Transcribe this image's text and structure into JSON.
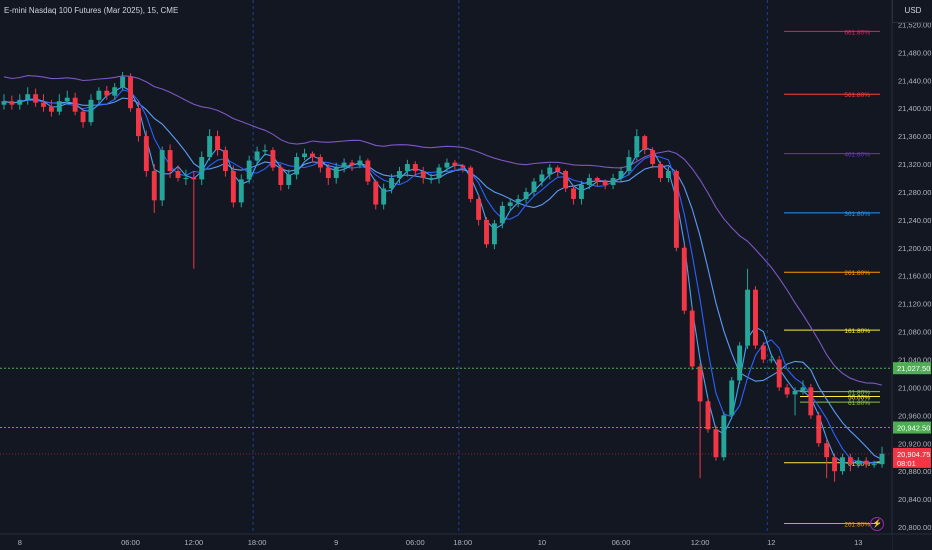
{
  "header": {
    "title": "E-mini Nasdaq 100 Futures (Mar 2025), 15, CME",
    "currency": "USD"
  },
  "icons": {
    "replay": "lightning-icon"
  },
  "chart_data": {
    "type": "candlestick",
    "title": "E-mini Nasdaq 100 Futures (Mar 2025), 15, CME",
    "x_labels": [
      "8",
      "06:00",
      "12:00",
      "18:00",
      "9",
      "06:00",
      "18:00",
      "10",
      "06:00",
      "12:00",
      "12",
      "13"
    ],
    "x_label_pos": [
      2,
      16,
      24,
      32,
      42,
      52,
      58,
      68,
      78,
      88,
      97,
      108
    ],
    "x_count": 112,
    "ylim": [
      20790,
      21555
    ],
    "y_ticks": [
      20800,
      20840,
      20880,
      20920,
      20960,
      21000,
      21040,
      21080,
      21120,
      21160,
      21200,
      21240,
      21280,
      21320,
      21360,
      21400,
      21440,
      21480,
      21520
    ],
    "anchor_levels": [
      {
        "value": 21027.5,
        "label": "21,027.50",
        "color": "#4caf50"
      },
      {
        "value": 20942.5,
        "label": "20,942.50",
        "color": "#4caf50"
      }
    ],
    "last_price": {
      "value": 20904.75,
      "label": "20,904.75",
      "countdown": "08:01",
      "color": "#f23645"
    },
    "session_breaks": [
      32,
      58,
      97
    ],
    "fib_levels": [
      {
        "value": 21510,
        "label": "661.80%",
        "color": "#e91e63"
      },
      {
        "value": 21420,
        "label": "561.80%",
        "color": "#f44336"
      },
      {
        "value": 21335,
        "label": "461.80%",
        "color": "#673ab7"
      },
      {
        "value": 21250,
        "label": "361.80%",
        "color": "#2196f3"
      },
      {
        "value": 21165,
        "label": "261.80%",
        "color": "#ff9800"
      },
      {
        "value": 21082,
        "label": "161.80%",
        "color": "#ffeb3b"
      },
      {
        "value": 20994,
        "label": "61.80%",
        "color": "#8bc34a"
      },
      {
        "value": 20987,
        "label": "50.00%",
        "color": "#ffeb3b"
      },
      {
        "value": 20979,
        "label": "61.80%",
        "color": "#8bc34a"
      },
      {
        "value": 20892,
        "label": "61.80%",
        "color": "#ffeb3b"
      },
      {
        "value": 20805,
        "label": "261.80%",
        "color": "#ff9800"
      }
    ],
    "series": [
      {
        "name": "Close",
        "values": [
          21410,
          21405,
          21412,
          21420,
          21408,
          21402,
          21395,
          21410,
          21415,
          21395,
          21380,
          21412,
          21425,
          21418,
          21430,
          21445,
          21400,
          21360,
          21310,
          21268,
          21340,
          21310,
          21300,
          21300,
          21298,
          21330,
          21360,
          21340,
          21310,
          21265,
          21298,
          21325,
          21338,
          21340,
          21315,
          21290,
          21305,
          21330,
          21335,
          21330,
          21315,
          21300,
          21315,
          21322,
          21318,
          21325,
          21295,
          21262,
          21285,
          21300,
          21310,
          21320,
          21310,
          21300,
          21300,
          21315,
          21322,
          21318,
          21315,
          21270,
          21240,
          21205,
          21235,
          21260,
          21265,
          21270,
          21280,
          21295,
          21305,
          21315,
          21310,
          21285,
          21270,
          21290,
          21300,
          21295,
          21290,
          21300,
          21310,
          21330,
          21360,
          21340,
          21320,
          21300,
          21310,
          21200,
          21110,
          21030,
          20980,
          20940,
          20900,
          20960,
          21010,
          21060,
          21140,
          21060,
          21040,
          21040,
          21000,
          20990,
          20995,
          21000,
          20960,
          20920,
          20900,
          20880,
          20900,
          20890,
          20895,
          20890,
          20890,
          20905
        ]
      },
      {
        "name": "Open",
        "values": [
          21405,
          21410,
          21405,
          21412,
          21420,
          21408,
          21402,
          21395,
          21410,
          21415,
          21395,
          21380,
          21412,
          21425,
          21418,
          21430,
          21445,
          21400,
          21360,
          21310,
          21268,
          21340,
          21310,
          21300,
          21300,
          21298,
          21330,
          21360,
          21340,
          21310,
          21265,
          21298,
          21325,
          21338,
          21340,
          21315,
          21290,
          21305,
          21330,
          21335,
          21330,
          21315,
          21300,
          21315,
          21322,
          21318,
          21325,
          21295,
          21262,
          21285,
          21300,
          21310,
          21320,
          21310,
          21300,
          21300,
          21315,
          21322,
          21318,
          21315,
          21270,
          21240,
          21205,
          21235,
          21260,
          21265,
          21270,
          21280,
          21295,
          21305,
          21315,
          21310,
          21285,
          21270,
          21290,
          21300,
          21295,
          21290,
          21300,
          21310,
          21330,
          21360,
          21340,
          21320,
          21300,
          21310,
          21200,
          21110,
          21030,
          20980,
          20940,
          20900,
          20960,
          21010,
          21060,
          21140,
          21060,
          21040,
          21040,
          21000,
          20990,
          20995,
          21000,
          20960,
          20920,
          20900,
          20880,
          20900,
          20890,
          20895,
          20890,
          20890
        ]
      },
      {
        "name": "High",
        "values": [
          21420,
          21418,
          21420,
          21430,
          21428,
          21420,
          21412,
          21420,
          21425,
          21422,
          21400,
          21420,
          21430,
          21432,
          21436,
          21452,
          21450,
          21410,
          21368,
          21320,
          21345,
          21348,
          21318,
          21312,
          21310,
          21338,
          21370,
          21368,
          21345,
          21318,
          21305,
          21332,
          21345,
          21348,
          21344,
          21320,
          21312,
          21336,
          21342,
          21338,
          21334,
          21320,
          21322,
          21328,
          21326,
          21332,
          21328,
          21298,
          21292,
          21306,
          21316,
          21326,
          21324,
          21316,
          21306,
          21320,
          21328,
          21326,
          21320,
          21318,
          21276,
          21244,
          21240,
          21266,
          21270,
          21276,
          21286,
          21300,
          21312,
          21320,
          21318,
          21312,
          21290,
          21296,
          21306,
          21302,
          21298,
          21306,
          21316,
          21340,
          21370,
          21362,
          21344,
          21324,
          21316,
          21312,
          21205,
          21115,
          21035,
          20985,
          20945,
          20965,
          21015,
          21065,
          21170,
          21145,
          21065,
          21045,
          21045,
          21005,
          21000,
          21010,
          21005,
          20965,
          20925,
          20905,
          20905,
          20905,
          20900,
          20900,
          20895,
          20915
        ]
      },
      {
        "name": "Low",
        "values": [
          21398,
          21398,
          21398,
          21405,
          21402,
          21395,
          21388,
          21390,
          21405,
          21390,
          21372,
          21375,
          21405,
          21412,
          21412,
          21425,
          21395,
          21352,
          21302,
          21250,
          21260,
          21300,
          21295,
          21290,
          21170,
          21290,
          21325,
          21332,
          21302,
          21258,
          21258,
          21292,
          21318,
          21332,
          21310,
          21282,
          21284,
          21298,
          21326,
          21322,
          21308,
          21290,
          21292,
          21308,
          21310,
          21314,
          21290,
          21255,
          21255,
          21278,
          21292,
          21302,
          21302,
          21292,
          21292,
          21292,
          21310,
          21312,
          21308,
          21265,
          21232,
          21200,
          21198,
          21228,
          21254,
          21258,
          21264,
          21274,
          21288,
          21298,
          21302,
          21280,
          21262,
          21262,
          21284,
          21288,
          21284,
          21284,
          21294,
          21304,
          21325,
          21334,
          21314,
          21294,
          21294,
          21195,
          21105,
          21025,
          20870,
          20935,
          20895,
          20895,
          20955,
          21005,
          21055,
          21055,
          21035,
          21035,
          20995,
          20985,
          20960,
          20990,
          20955,
          20915,
          20870,
          20865,
          20875,
          20880,
          20885,
          20885,
          20885,
          20885
        ]
      }
    ],
    "moving_averages": [
      {
        "name": "",
        "color": "#7e57c2"
      },
      {
        "name": "",
        "color": "#5b9cf6"
      },
      {
        "name": "",
        "color": "#2962ff"
      },
      {
        "name": "",
        "color": "#42a5f5"
      }
    ],
    "grid": false,
    "up_color": "#26a69a",
    "down_color": "#f23645"
  }
}
